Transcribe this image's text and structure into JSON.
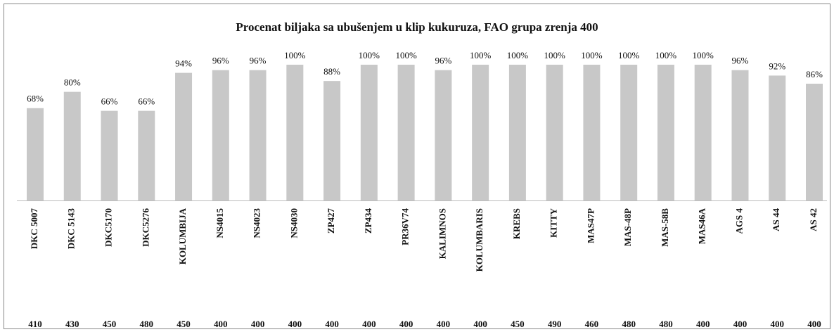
{
  "chart_data": {
    "type": "bar",
    "title": "Procenat biljaka sa ubušenjem u klip kukuruza, FAO grupa zrenja 400",
    "categories": [
      "DKC 5007",
      "DKC 5143",
      "DKC5170",
      "DKC5276",
      "KOLUMBIJA",
      "NS4015",
      "NS4023",
      "NS4030",
      "ZP427",
      "ZP434",
      "PR36V74",
      "KALIMNOS",
      "KOLUMBARIS",
      "KREBS",
      "KITTY",
      "MAS47P",
      "MAS-48P",
      "MAS-58B",
      "MAS46A",
      "AGS 4",
      "AS 44",
      "AS 42"
    ],
    "values": [
      68,
      80,
      66,
      66,
      94,
      96,
      96,
      100,
      88,
      100,
      100,
      96,
      100,
      100,
      100,
      100,
      100,
      100,
      100,
      96,
      92,
      86
    ],
    "value_labels": [
      "68%",
      "80%",
      "66%",
      "66%",
      "94%",
      "96%",
      "96%",
      "100%",
      "88%",
      "100%",
      "100%",
      "96%",
      "100%",
      "100%",
      "100%",
      "100%",
      "100%",
      "100%",
      "100%",
      "96%",
      "92%",
      "86%"
    ],
    "fao_groups": [
      410,
      430,
      450,
      480,
      450,
      400,
      400,
      400,
      400,
      400,
      400,
      400,
      400,
      450,
      490,
      460,
      480,
      480,
      400,
      400,
      400,
      400
    ],
    "color": "#c8c8c8"
  }
}
